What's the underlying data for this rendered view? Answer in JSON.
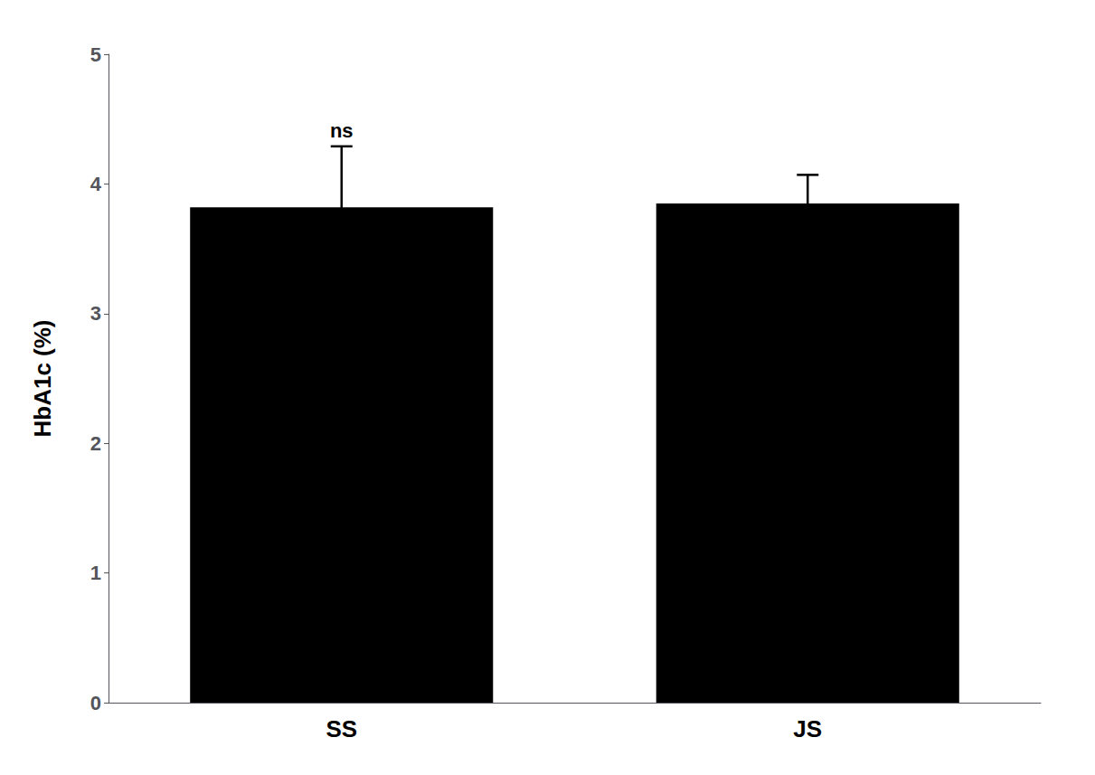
{
  "chart_data": {
    "type": "bar",
    "categories": [
      "SS",
      "JS"
    ],
    "values": [
      3.82,
      3.85
    ],
    "errors": [
      0.47,
      0.22
    ],
    "color": "#000000",
    "ylabel": "HbA1c (%)",
    "ylim": [
      0,
      5
    ],
    "yticks": [
      0,
      1,
      2,
      3,
      4,
      5
    ],
    "grid": false,
    "annotation": {
      "text": "ns",
      "category": "SS"
    }
  }
}
